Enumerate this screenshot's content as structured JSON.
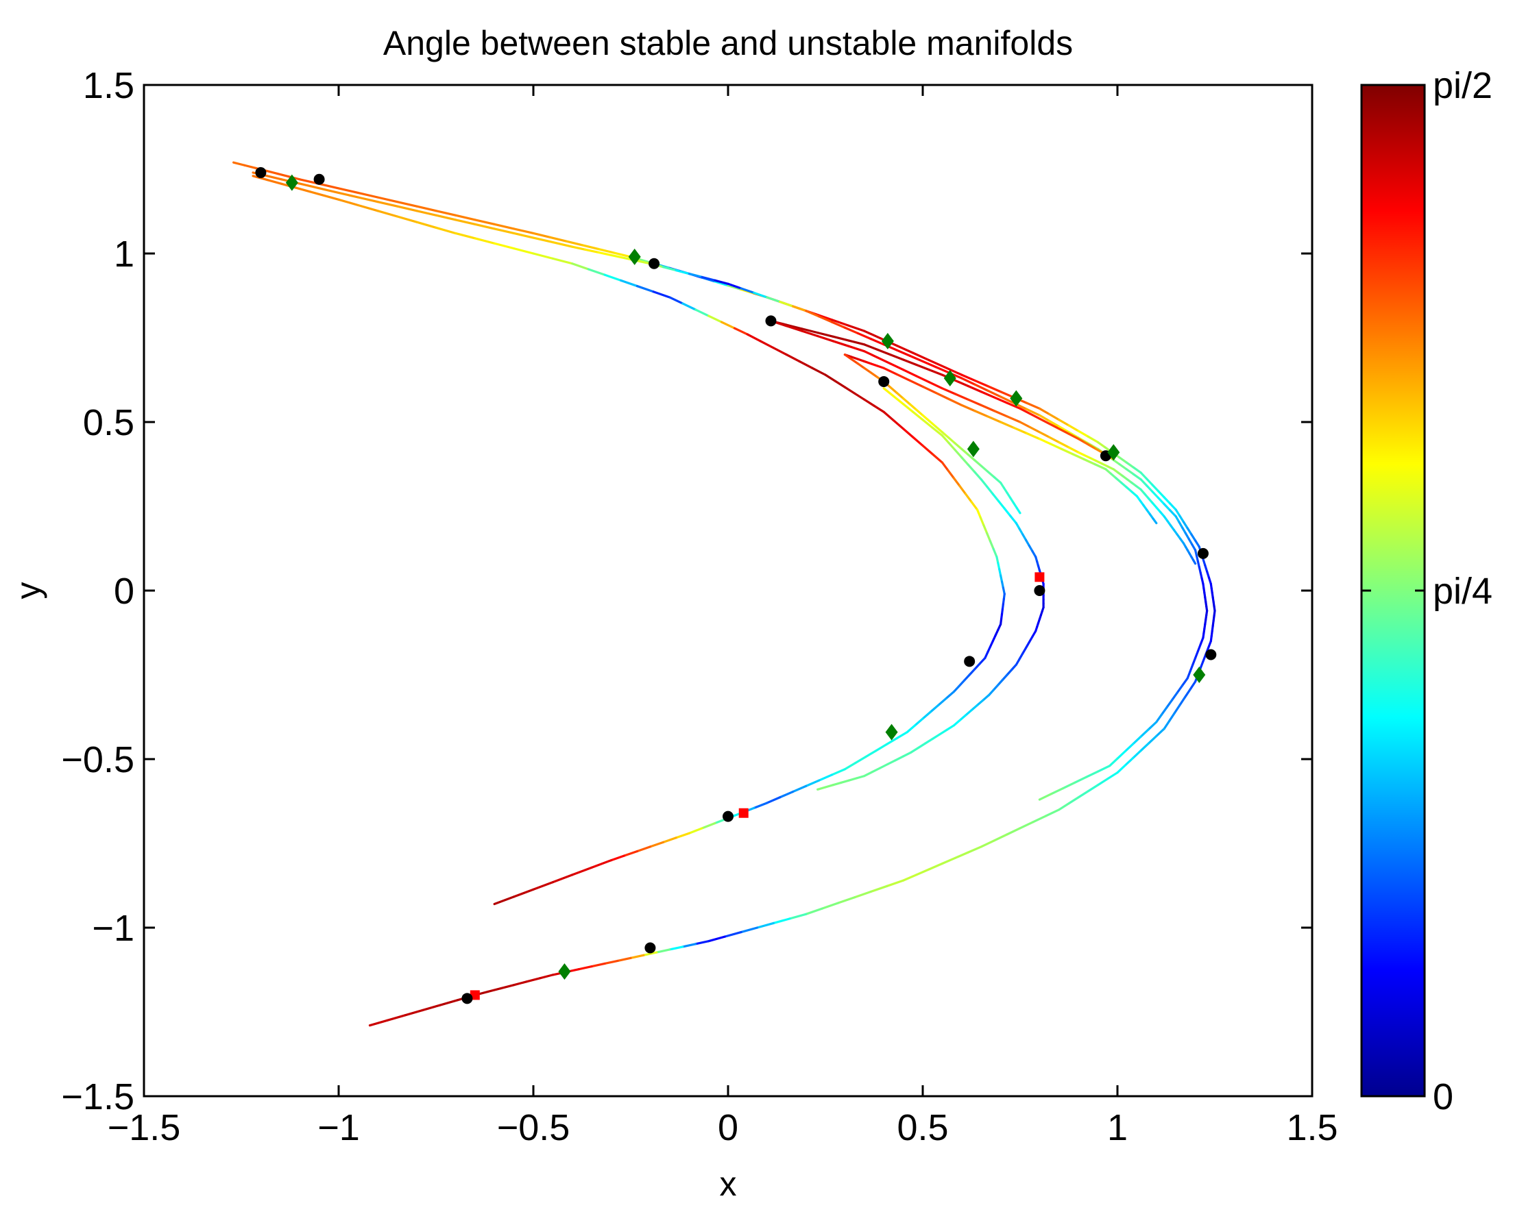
{
  "chart_data": {
    "type": "line",
    "title": "Angle between stable and unstable manifolds",
    "xlabel": "x",
    "ylabel": "y",
    "xlim": [
      -1.5,
      1.5
    ],
    "ylim": [
      -1.5,
      1.5
    ],
    "xticks": [
      -1.5,
      -1,
      -0.5,
      0,
      0.5,
      1,
      1.5
    ],
    "xtick_labels": [
      "−1.5",
      "−1",
      "−0.5",
      "0",
      "0.5",
      "1",
      "1.5"
    ],
    "yticks": [
      -1.5,
      -1,
      -0.5,
      0,
      0.5,
      1,
      1.5
    ],
    "ytick_labels": [
      "−1.5",
      "−1",
      "−0.5",
      "0",
      "0.5",
      "1",
      "1.5"
    ],
    "grid": false,
    "colormap": "jet",
    "colorbar": {
      "range": [
        0,
        1.5708
      ],
      "ticks": [
        0,
        0.7854,
        1.5708
      ],
      "tick_labels": [
        "0",
        "pi/4",
        "pi/2"
      ],
      "placement": "right"
    },
    "series": [
      {
        "role": "manifold-outer",
        "points": [
          [
            -1.27,
            1.27
          ],
          [
            -1.1,
            1.22
          ],
          [
            -0.8,
            1.14
          ],
          [
            -0.5,
            1.06
          ],
          [
            -0.25,
            0.99
          ],
          [
            -0.1,
            0.94
          ],
          [
            0.1,
            0.87
          ],
          [
            0.35,
            0.77
          ],
          [
            0.6,
            0.64
          ],
          [
            0.8,
            0.54
          ],
          [
            0.95,
            0.44
          ],
          [
            1.06,
            0.35
          ],
          [
            1.15,
            0.24
          ],
          [
            1.21,
            0.13
          ],
          [
            1.24,
            0.02
          ],
          [
            1.25,
            -0.06
          ],
          [
            1.24,
            -0.15
          ],
          [
            1.2,
            -0.27
          ],
          [
            1.12,
            -0.41
          ],
          [
            1.0,
            -0.54
          ],
          [
            0.85,
            -0.65
          ],
          [
            0.65,
            -0.76
          ],
          [
            0.45,
            -0.86
          ],
          [
            0.2,
            -0.96
          ],
          [
            -0.05,
            -1.04
          ],
          [
            -0.25,
            -1.09
          ],
          [
            -0.45,
            -1.14
          ],
          [
            -0.65,
            -1.2
          ],
          [
            -0.92,
            -1.29
          ]
        ],
        "angles": [
          1.2,
          1.25,
          1.2,
          1.15,
          1.0,
          0.1,
          1.3,
          1.45,
          1.4,
          1.2,
          0.9,
          0.7,
          0.55,
          0.35,
          0.2,
          0.15,
          0.2,
          0.3,
          0.45,
          0.6,
          0.75,
          0.85,
          0.9,
          0.75,
          0.15,
          1.2,
          1.45,
          1.5,
          1.45
        ]
      },
      {
        "role": "manifold-outer-inner-branch",
        "points": [
          [
            -1.22,
            1.24
          ],
          [
            -1.0,
            1.18
          ],
          [
            -0.7,
            1.1
          ],
          [
            -0.4,
            1.02
          ],
          [
            -0.2,
            0.97
          ],
          [
            0.0,
            0.91
          ],
          [
            0.2,
            0.83
          ],
          [
            0.4,
            0.73
          ],
          [
            0.6,
            0.63
          ],
          [
            0.8,
            0.52
          ],
          [
            0.95,
            0.42
          ],
          [
            1.06,
            0.33
          ],
          [
            1.15,
            0.22
          ],
          [
            1.2,
            0.12
          ],
          [
            1.22,
            0.02
          ],
          [
            1.23,
            -0.06
          ],
          [
            1.22,
            -0.14
          ],
          [
            1.18,
            -0.26
          ],
          [
            1.1,
            -0.39
          ],
          [
            0.98,
            -0.52
          ],
          [
            0.8,
            -0.62
          ]
        ],
        "angles": [
          1.2,
          1.15,
          1.1,
          1.05,
          0.9,
          0.1,
          1.2,
          1.4,
          1.35,
          1.1,
          0.85,
          0.7,
          0.5,
          0.35,
          0.2,
          0.15,
          0.2,
          0.3,
          0.45,
          0.65,
          0.8
        ]
      },
      {
        "role": "manifold-fold-1",
        "points": [
          [
            0.11,
            0.8
          ],
          [
            0.35,
            0.73
          ],
          [
            0.55,
            0.64
          ],
          [
            0.75,
            0.54
          ],
          [
            0.9,
            0.45
          ],
          [
            0.99,
            0.39
          ]
        ],
        "angles": [
          1.5,
          1.5,
          1.45,
          1.35,
          1.25,
          1.1
        ]
      },
      {
        "role": "manifold-fold-2",
        "points": [
          [
            0.11,
            0.8
          ],
          [
            0.35,
            0.71
          ],
          [
            0.55,
            0.6
          ],
          [
            0.75,
            0.5
          ],
          [
            0.9,
            0.41
          ],
          [
            0.99,
            0.36
          ],
          [
            1.06,
            0.3
          ],
          [
            1.12,
            0.22
          ],
          [
            1.17,
            0.14
          ],
          [
            1.2,
            0.08
          ]
        ],
        "angles": [
          1.45,
          1.4,
          1.35,
          1.2,
          1.0,
          0.85,
          0.7,
          0.55,
          0.45,
          0.35
        ]
      },
      {
        "role": "manifold-fold-3",
        "points": [
          [
            0.3,
            0.7
          ],
          [
            0.4,
            0.66
          ],
          [
            0.6,
            0.55
          ],
          [
            0.8,
            0.45
          ],
          [
            0.97,
            0.36
          ],
          [
            1.05,
            0.28
          ],
          [
            1.1,
            0.2
          ]
        ],
        "angles": [
          1.45,
          1.35,
          1.2,
          1.0,
          0.8,
          0.6,
          0.45
        ]
      },
      {
        "role": "manifold-fold-4",
        "points": [
          [
            0.3,
            0.7
          ],
          [
            0.4,
            0.62
          ],
          [
            0.5,
            0.52
          ],
          [
            0.6,
            0.42
          ],
          [
            0.7,
            0.32
          ],
          [
            0.75,
            0.23
          ]
        ],
        "angles": [
          1.3,
          1.15,
          1.0,
          0.85,
          0.7,
          0.6
        ]
      },
      {
        "role": "manifold-inner-left",
        "points": [
          [
            -1.22,
            1.23
          ],
          [
            -1.0,
            1.16
          ],
          [
            -0.7,
            1.06
          ],
          [
            -0.4,
            0.97
          ],
          [
            -0.15,
            0.87
          ],
          [
            0.05,
            0.76
          ],
          [
            0.25,
            0.64
          ],
          [
            0.4,
            0.53
          ],
          [
            0.55,
            0.38
          ],
          [
            0.64,
            0.24
          ],
          [
            0.69,
            0.1
          ],
          [
            0.71,
            -0.01
          ],
          [
            0.7,
            -0.1
          ],
          [
            0.66,
            -0.2
          ],
          [
            0.58,
            -0.3
          ],
          [
            0.46,
            -0.42
          ],
          [
            0.3,
            -0.53
          ],
          [
            0.1,
            -0.63
          ],
          [
            -0.1,
            -0.72
          ],
          [
            -0.3,
            -0.8
          ],
          [
            -0.6,
            -0.93
          ]
        ],
        "angles": [
          1.2,
          1.15,
          1.05,
          0.9,
          0.2,
          1.4,
          1.5,
          1.45,
          1.3,
          1.0,
          0.7,
          0.35,
          0.15,
          0.25,
          0.4,
          0.6,
          0.65,
          0.3,
          1.0,
          1.4,
          1.5
        ]
      },
      {
        "role": "manifold-inner-right",
        "points": [
          [
            0.4,
            0.6
          ],
          [
            0.55,
            0.46
          ],
          [
            0.65,
            0.33
          ],
          [
            0.74,
            0.2
          ],
          [
            0.79,
            0.1
          ],
          [
            0.81,
            0.02
          ],
          [
            0.81,
            -0.05
          ],
          [
            0.79,
            -0.12
          ],
          [
            0.74,
            -0.22
          ],
          [
            0.67,
            -0.31
          ],
          [
            0.58,
            -0.4
          ],
          [
            0.47,
            -0.48
          ],
          [
            0.35,
            -0.55
          ],
          [
            0.23,
            -0.59
          ]
        ],
        "angles": [
          1.0,
          0.9,
          0.7,
          0.55,
          0.35,
          0.2,
          0.15,
          0.2,
          0.3,
          0.45,
          0.6,
          0.7,
          0.75,
          0.8
        ]
      }
    ],
    "markers": {
      "black_circles": [
        [
          -1.2,
          1.24
        ],
        [
          -1.05,
          1.22
        ],
        [
          -0.19,
          0.97
        ],
        [
          0.11,
          0.8
        ],
        [
          0.4,
          0.62
        ],
        [
          0.97,
          0.4
        ],
        [
          1.22,
          0.11
        ],
        [
          1.24,
          -0.19
        ],
        [
          0.8,
          0.0
        ],
        [
          0.62,
          -0.21
        ],
        [
          0.0,
          -0.67
        ],
        [
          -0.2,
          -1.06
        ],
        [
          -0.67,
          -1.21
        ]
      ],
      "green_diamonds": [
        [
          -1.12,
          1.21
        ],
        [
          -0.24,
          0.99
        ],
        [
          0.41,
          0.74
        ],
        [
          0.57,
          0.63
        ],
        [
          0.74,
          0.57
        ],
        [
          0.99,
          0.41
        ],
        [
          0.63,
          0.42
        ],
        [
          1.21,
          -0.25
        ],
        [
          0.42,
          -0.42
        ],
        [
          -0.42,
          -1.13
        ]
      ],
      "red_squares": [
        [
          0.8,
          0.04
        ],
        [
          0.04,
          -0.66
        ],
        [
          -0.65,
          -1.2
        ]
      ]
    }
  }
}
